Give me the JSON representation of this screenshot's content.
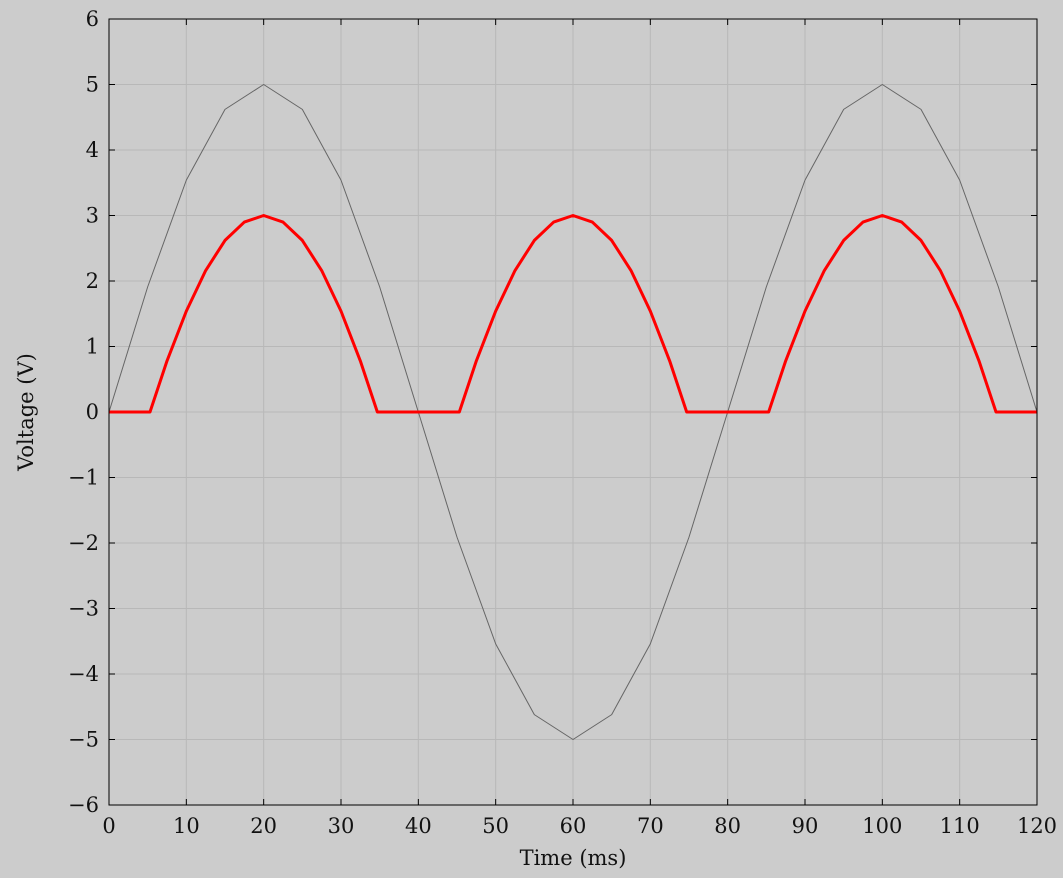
{
  "chart_data": {
    "type": "line",
    "title": "",
    "xlabel": "Time (ms)",
    "ylabel": "Voltage (V)",
    "xlim": [
      0,
      120
    ],
    "ylim": [
      -6,
      6
    ],
    "xticks": [
      0,
      10,
      20,
      30,
      40,
      50,
      60,
      70,
      80,
      90,
      100,
      110,
      120
    ],
    "yticks": [
      -6,
      -5,
      -4,
      -3,
      -2,
      -1,
      0,
      1,
      2,
      3,
      4,
      5,
      6
    ],
    "xtick_labels": [
      "0",
      "10",
      "20",
      "30",
      "40",
      "50",
      "60",
      "70",
      "80",
      "90",
      "100",
      "110",
      "120"
    ],
    "ytick_labels": [
      "−6",
      "−5",
      "−4",
      "−3",
      "−2",
      "−1",
      "0",
      "1",
      "2",
      "3",
      "4",
      "5",
      "6"
    ],
    "grid": true,
    "legend": "none",
    "series": [
      {
        "color": "#666666",
        "x": [
          0,
          5,
          10,
          15,
          20,
          25,
          30,
          35,
          40,
          45,
          50,
          55,
          60,
          65,
          70,
          75,
          80,
          85,
          90,
          95,
          100,
          105,
          110,
          115,
          120
        ],
        "y": [
          0,
          1.91,
          3.54,
          4.62,
          5,
          4.62,
          3.54,
          1.91,
          0,
          -1.91,
          -3.54,
          -4.62,
          -5,
          -4.62,
          -3.54,
          -1.91,
          0,
          1.91,
          3.54,
          4.62,
          5,
          4.62,
          3.54,
          1.91,
          0
        ]
      },
      {
        "color": "#ff0000",
        "x": [
          0,
          5.3,
          7.5,
          10,
          12.5,
          15,
          17.5,
          20,
          22.5,
          25,
          27.5,
          30,
          32.5,
          34.7,
          45.3,
          47.5,
          50,
          52.5,
          55,
          57.5,
          60,
          62.5,
          65,
          67.5,
          70,
          72.5,
          74.7,
          85.3,
          87.5,
          90,
          92.5,
          95,
          97.5,
          100,
          102.5,
          105,
          107.5,
          110,
          112.5,
          114.7,
          120
        ],
        "y": [
          0,
          0,
          0.78,
          1.54,
          2.16,
          2.62,
          2.9,
          3,
          2.9,
          2.62,
          2.16,
          1.54,
          0.78,
          0,
          0,
          0.78,
          1.54,
          2.16,
          2.62,
          2.9,
          3,
          2.9,
          2.62,
          2.16,
          1.54,
          0.78,
          0,
          0,
          0.78,
          1.54,
          2.16,
          2.62,
          2.9,
          3,
          2.9,
          2.62,
          2.16,
          1.54,
          0.78,
          0,
          0
        ]
      }
    ]
  }
}
